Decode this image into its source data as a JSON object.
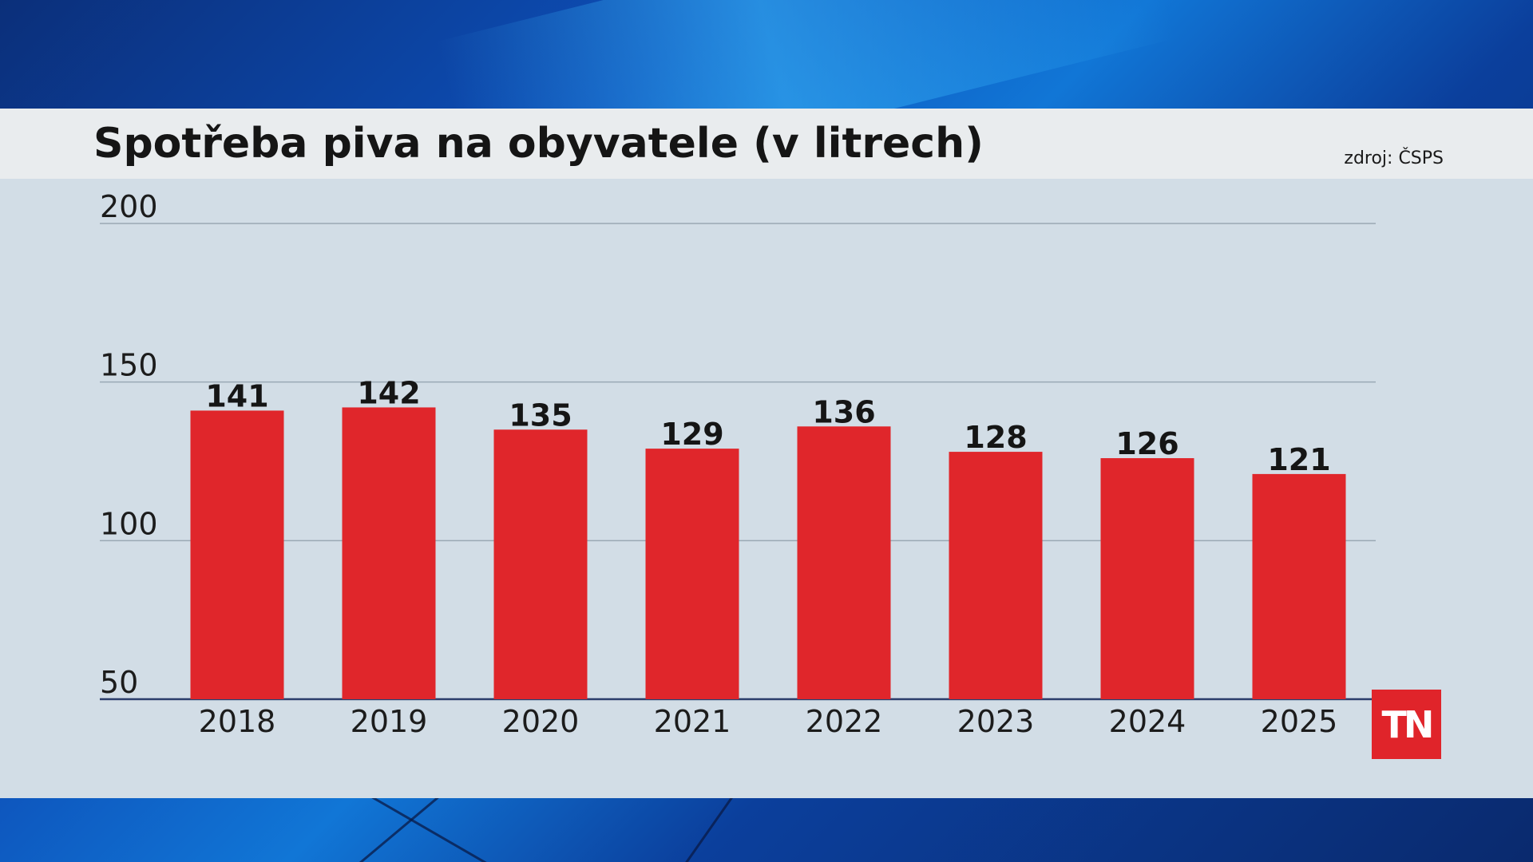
{
  "header": {
    "title": "Spotřeba piva na obyvatele (v litrech)",
    "source": "zdroj: ČSPS"
  },
  "logo": {
    "text": "TN",
    "color": "#e0242a"
  },
  "chart_data": {
    "type": "bar",
    "title": "Spotřeba piva na obyvatele (v litrech)",
    "xlabel": "",
    "ylabel": "",
    "categories": [
      "2018",
      "2019",
      "2020",
      "2021",
      "2022",
      "2023",
      "2024",
      "2025"
    ],
    "values": [
      141,
      142,
      135,
      129,
      136,
      128,
      126,
      121
    ],
    "data_labels": [
      "141",
      "142",
      "135",
      "129",
      "136",
      "128",
      "126",
      "121"
    ],
    "ylim": [
      50,
      200
    ],
    "yticks": [
      50,
      100,
      150,
      200
    ],
    "ytick_labels": [
      "50",
      "100",
      "150",
      "200"
    ],
    "grid": true,
    "legend": "none",
    "bar_color": "#e0262b"
  }
}
